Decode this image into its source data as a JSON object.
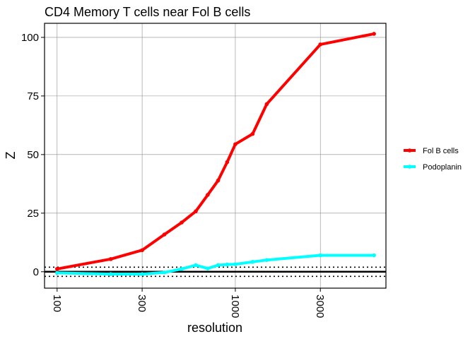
{
  "chart_data": {
    "type": "line",
    "title": "CD4 Memory T cells near Fol B cells",
    "xlabel": "resolution",
    "ylabel": "Z",
    "x_scale": "log10",
    "xlim": [
      85,
      7000
    ],
    "ylim": [
      -7,
      106
    ],
    "x_ticks": [
      100,
      300,
      1000,
      3000
    ],
    "x_tick_labels": [
      "100",
      "300",
      "1000",
      "3000"
    ],
    "y_ticks": [
      0,
      25,
      50,
      75,
      100
    ],
    "y_tick_labels": [
      "0",
      "25",
      "50",
      "75",
      "100"
    ],
    "grid": true,
    "reference_lines": {
      "solid": [
        0
      ],
      "dotted": [
        1.96,
        -1.96
      ]
    },
    "legend_position": "right",
    "series": [
      {
        "name": "Fol B cells",
        "color": "#ff0000",
        "x": [
          100,
          200,
          300,
          400,
          500,
          600,
          700,
          800,
          900,
          1000,
          1250,
          1500,
          3000,
          6000
        ],
        "y": [
          1.2,
          5.4,
          9.2,
          15.9,
          21.0,
          25.8,
          32.8,
          38.9,
          46.8,
          54.4,
          58.8,
          71.5,
          97.0,
          101.5
        ]
      },
      {
        "name": "Podoplanin",
        "color": "#00ffff",
        "x": [
          100,
          200,
          300,
          400,
          500,
          600,
          700,
          800,
          900,
          1000,
          1250,
          1500,
          3000,
          6000
        ],
        "y": [
          -0.5,
          -1.0,
          -1.0,
          -0.3,
          1.2,
          2.8,
          1.4,
          2.8,
          3.1,
          3.2,
          4.2,
          5.0,
          7.0,
          7.0
        ]
      }
    ]
  }
}
